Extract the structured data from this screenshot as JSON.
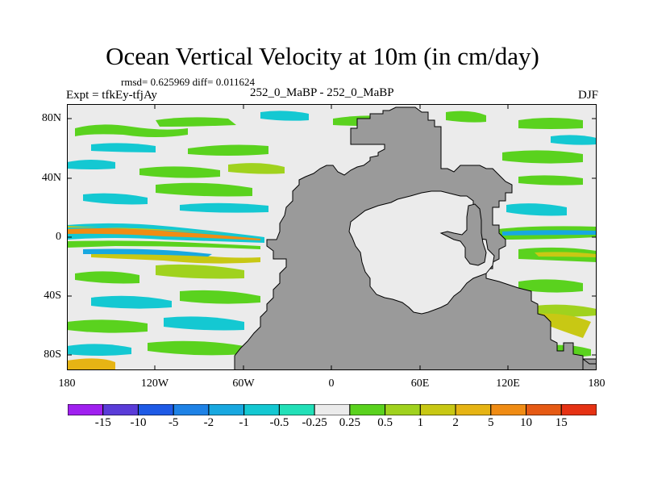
{
  "figure": {
    "title": "Ocean Vertical Velocity at 10m (in cm/day)",
    "stats": "rmsd= 0.625969  diff= 0.011624",
    "experiment": "Expt = tfkEy-tfjAy",
    "cases": "252_0_MaBP - 252_0_MaBP",
    "season": "DJF"
  },
  "axes": {
    "y_ticks": [
      "80N",
      "40N",
      "0",
      "40S",
      "80S"
    ],
    "x_ticks": [
      "180",
      "120W",
      "60W",
      "0",
      "60E",
      "120E",
      "180"
    ]
  },
  "colorbar": {
    "labels": [
      "-15",
      "-10",
      "-5",
      "-2",
      "-1",
      "-0.5",
      "-0.25",
      "0.25",
      "0.5",
      "1",
      "2",
      "5",
      "10",
      "15"
    ],
    "colors": [
      "#a020f0",
      "#5a3cd8",
      "#1e5ae6",
      "#1e82e6",
      "#18a8e0",
      "#14c8d2",
      "#22e0b8",
      "#ebebeb",
      "#5ad21e",
      "#a0d21e",
      "#c8c814",
      "#e6b414",
      "#f08c14",
      "#e65a14",
      "#e63214"
    ]
  },
  "colors": {
    "land": "#9a9a9a",
    "ocean_background": "#ebebeb"
  }
}
